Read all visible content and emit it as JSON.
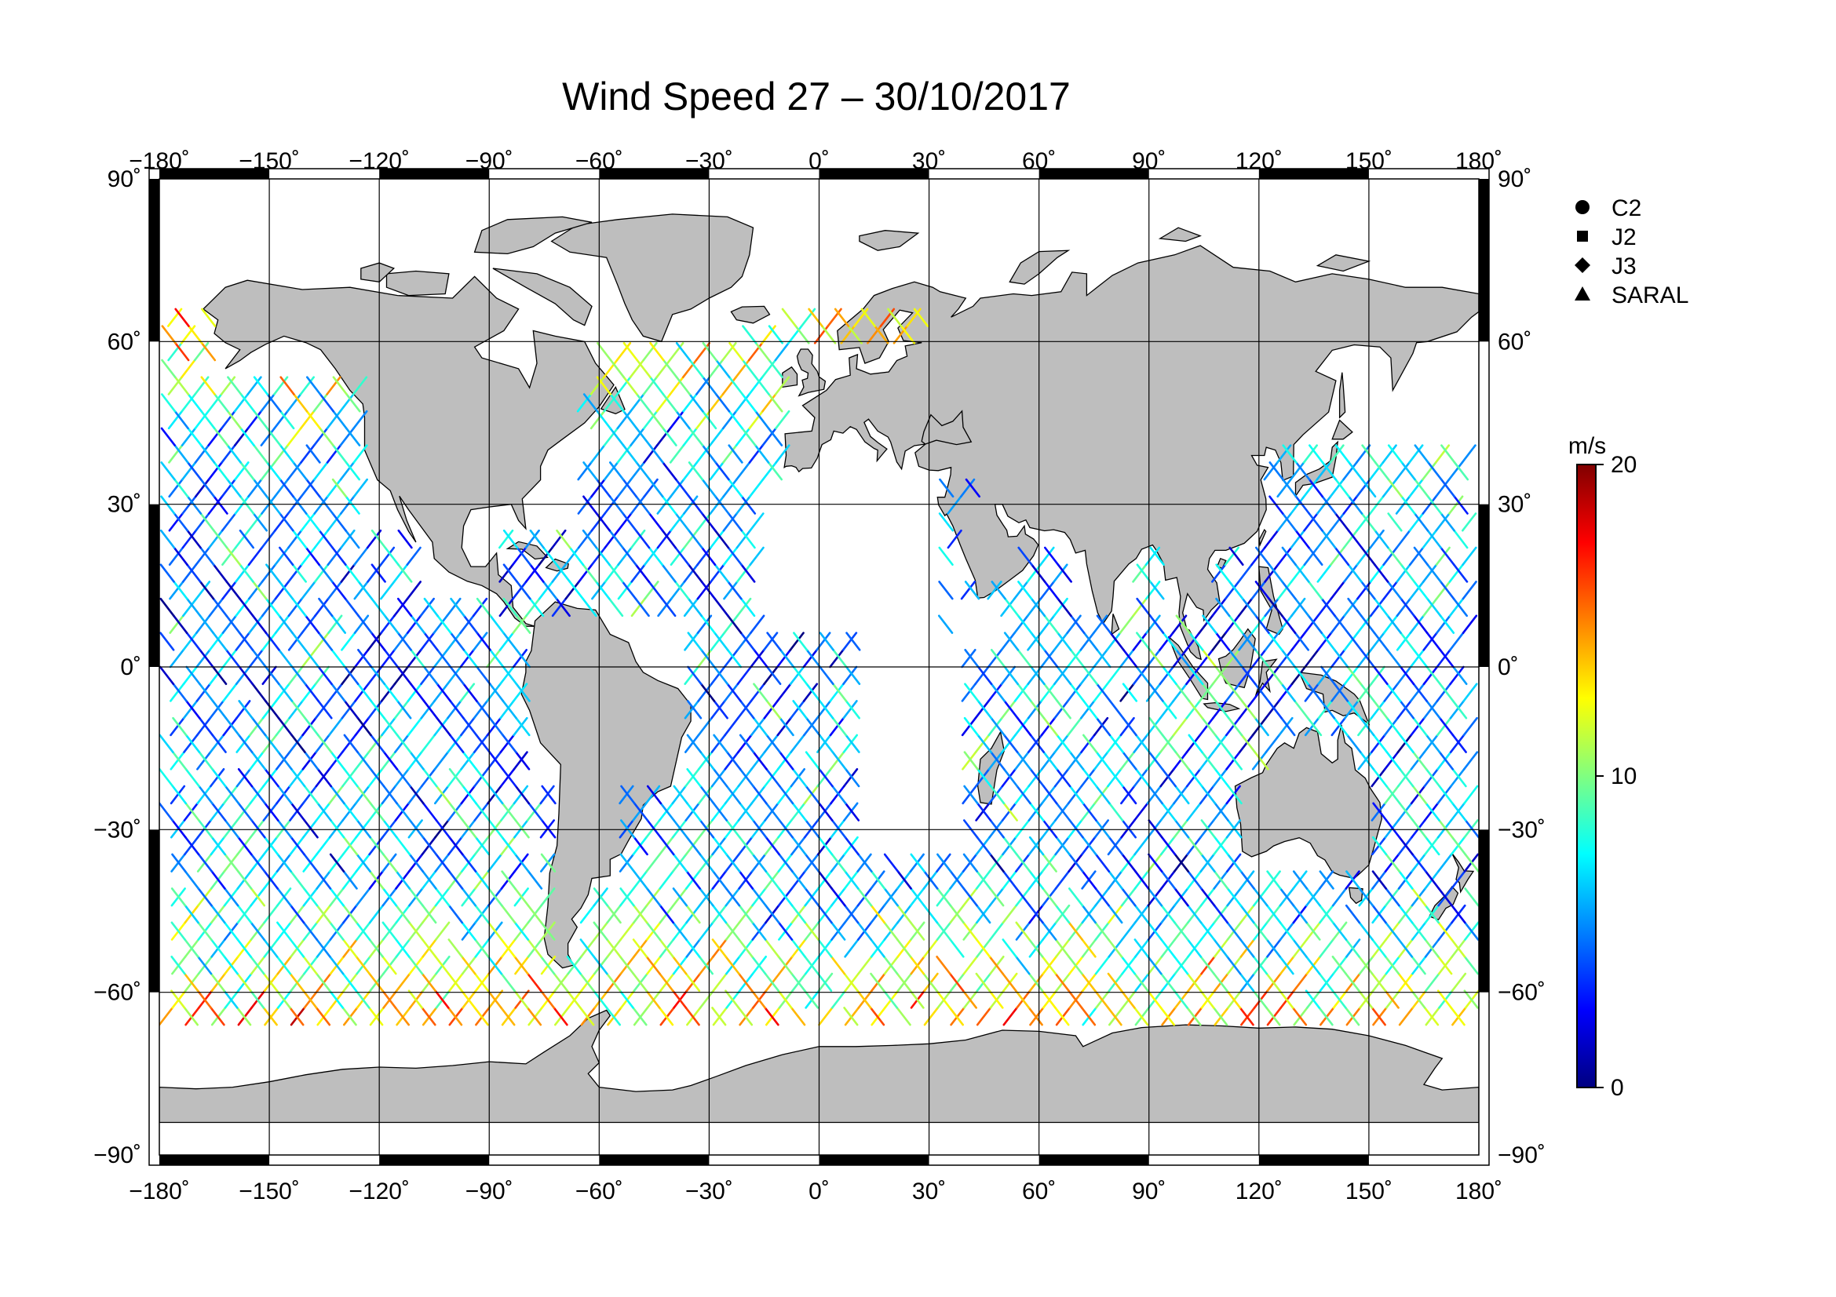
{
  "map": {
    "title": "Wind Speed 27 – 30/10/2017",
    "projection": "equirectangular",
    "extent": {
      "lon": [
        -180,
        180
      ],
      "lat": [
        -90,
        90
      ]
    },
    "graticule_step_deg": 30,
    "lon_ticks": [
      "−180˚",
      "−150˚",
      "−120˚",
      "−90˚",
      "−60˚",
      "−30˚",
      "0˚",
      "30˚",
      "60˚",
      "90˚",
      "120˚",
      "150˚",
      "180˚"
    ],
    "lat_ticks": [
      "90˚",
      "60˚",
      "30˚",
      "0˚",
      "−30˚",
      "−60˚",
      "−90˚"
    ],
    "land_color": "#bebebe",
    "ocean_color": "#ffffff"
  },
  "legend": {
    "items": [
      {
        "label": "C2",
        "symbol": "circle"
      },
      {
        "label": "J2",
        "symbol": "square"
      },
      {
        "label": "J3",
        "symbol": "diamond"
      },
      {
        "label": "SARAL",
        "symbol": "triangle"
      }
    ]
  },
  "colorbar": {
    "unit": "m/s",
    "min": 0,
    "max": 20,
    "tick_labels": [
      "20",
      "10",
      "0"
    ],
    "colors": [
      "#000080",
      "#0000ff",
      "#0080ff",
      "#00ffff",
      "#80ff80",
      "#ffff00",
      "#ff8000",
      "#ff0000",
      "#800000"
    ]
  },
  "chart_data": {
    "type": "map",
    "variable": "wind speed along satellite altimeter ground tracks",
    "unit": "m/s",
    "value_range": [
      0,
      20
    ],
    "track_lat_limit": [
      -66,
      66
    ]
  }
}
